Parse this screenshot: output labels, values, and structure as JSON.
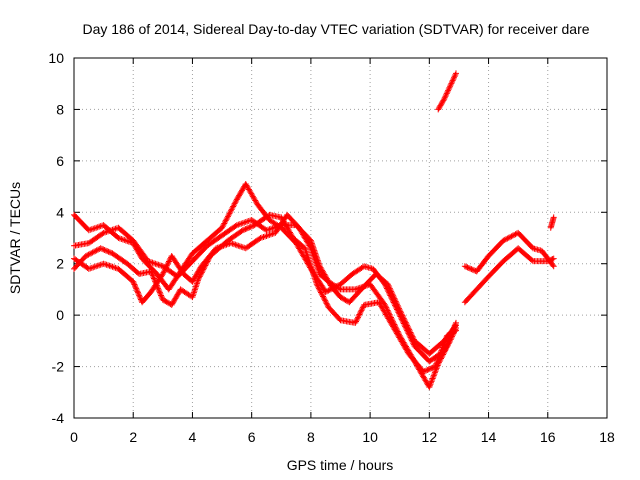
{
  "chart_data": {
    "type": "scatter",
    "title": "Day 186 of 2014, Sidereal Day-to-day VTEC variation (SDTVAR) for receiver dare",
    "xlabel": "GPS time / hours",
    "ylabel": "SDTVAR / TECUs",
    "xlim": [
      0,
      18
    ],
    "ylim": [
      -4,
      10
    ],
    "xticks": [
      "0",
      "2",
      "4",
      "6",
      "8",
      "10",
      "12",
      "14",
      "16",
      "18"
    ],
    "yticks": [
      "-4",
      "-2",
      "0",
      "2",
      "4",
      "6",
      "8",
      "10"
    ],
    "grid": true,
    "legend": "none",
    "marker": "+",
    "color": "#ff0000",
    "series": [
      {
        "name": "track-a",
        "points": [
          [
            0,
            3.9
          ],
          [
            0.5,
            3.3
          ],
          [
            1,
            3.5
          ],
          [
            1.5,
            3.0
          ],
          [
            2,
            2.8
          ],
          [
            2.3,
            2.2
          ],
          [
            2.8,
            1.6
          ],
          [
            3.2,
            1.0
          ],
          [
            3.6,
            1.7
          ],
          [
            4,
            2.4
          ],
          [
            4.5,
            2.9
          ],
          [
            5,
            3.4
          ],
          [
            5.5,
            4.5
          ],
          [
            5.8,
            5.1
          ],
          [
            6.2,
            4.3
          ],
          [
            6.6,
            3.7
          ],
          [
            7,
            3.4
          ],
          [
            7.5,
            2.8
          ],
          [
            8,
            1.8
          ],
          [
            8.5,
            0.9
          ],
          [
            9,
            1.2
          ],
          [
            9.4,
            1.6
          ],
          [
            9.8,
            1.9
          ],
          [
            10.1,
            1.8
          ],
          [
            10.5,
            1.2
          ],
          [
            11,
            0.0
          ],
          [
            11.5,
            -1.2
          ],
          [
            12,
            -1.8
          ],
          [
            12.5,
            -1.4
          ],
          [
            12.9,
            -0.3
          ]
        ]
      },
      {
        "name": "track-b",
        "points": [
          [
            0,
            2.7
          ],
          [
            0.5,
            2.8
          ],
          [
            1,
            3.2
          ],
          [
            1.5,
            3.4
          ],
          [
            2,
            2.9
          ],
          [
            2.5,
            2.1
          ],
          [
            3,
            1.9
          ],
          [
            3.5,
            1.5
          ],
          [
            4,
            2.1
          ],
          [
            4.5,
            2.7
          ],
          [
            5,
            3.1
          ],
          [
            5.5,
            3.5
          ],
          [
            6,
            3.7
          ],
          [
            6.5,
            3.3
          ],
          [
            7,
            3.5
          ],
          [
            7.5,
            3.5
          ],
          [
            8,
            2.9
          ],
          [
            8.3,
            1.9
          ],
          [
            8.7,
            1.1
          ],
          [
            9,
            0.7
          ],
          [
            9.3,
            0.5
          ],
          [
            9.7,
            1.0
          ],
          [
            10.2,
            1.6
          ],
          [
            10.6,
            1.2
          ],
          [
            11,
            0.2
          ],
          [
            11.5,
            -1.0
          ],
          [
            12,
            -1.5
          ],
          [
            12.5,
            -1.0
          ],
          [
            12.9,
            -0.4
          ]
        ]
      },
      {
        "name": "track-c",
        "points": [
          [
            0,
            2.2
          ],
          [
            0.5,
            1.8
          ],
          [
            1,
            2.0
          ],
          [
            1.5,
            1.8
          ],
          [
            2,
            1.3
          ],
          [
            2.3,
            0.5
          ],
          [
            2.6,
            0.9
          ],
          [
            3,
            1.6
          ],
          [
            3.3,
            2.3
          ],
          [
            3.7,
            1.6
          ],
          [
            4,
            1.3
          ],
          [
            4.3,
            1.9
          ],
          [
            4.8,
            2.6
          ],
          [
            5.3,
            2.8
          ],
          [
            5.8,
            2.6
          ],
          [
            6.3,
            3.0
          ],
          [
            6.8,
            3.2
          ],
          [
            7.2,
            3.9
          ],
          [
            7.6,
            3.4
          ],
          [
            8,
            2.6
          ],
          [
            8.3,
            1.6
          ],
          [
            8.6,
            1.3
          ],
          [
            9,
            1.0
          ],
          [
            9.5,
            1.0
          ],
          [
            10,
            1.2
          ],
          [
            10.5,
            0.4
          ],
          [
            11,
            -0.8
          ],
          [
            11.5,
            -1.8
          ],
          [
            12,
            -2.8
          ],
          [
            12.3,
            -1.9
          ],
          [
            12.7,
            -1.0
          ],
          [
            12.9,
            -0.5
          ]
        ]
      },
      {
        "name": "track-d",
        "points": [
          [
            0,
            1.8
          ],
          [
            0.4,
            2.3
          ],
          [
            0.9,
            2.6
          ],
          [
            1.3,
            2.4
          ],
          [
            1.8,
            2.0
          ],
          [
            2.2,
            1.6
          ],
          [
            2.6,
            1.7
          ],
          [
            3.0,
            0.6
          ],
          [
            3.3,
            0.4
          ],
          [
            3.6,
            1.0
          ],
          [
            4.0,
            0.7
          ],
          [
            4.2,
            1.4
          ],
          [
            4.6,
            2.3
          ],
          [
            5.2,
            2.9
          ],
          [
            5.7,
            3.3
          ],
          [
            6.1,
            3.5
          ],
          [
            6.6,
            3.9
          ],
          [
            7.0,
            3.8
          ],
          [
            7.4,
            3.0
          ],
          [
            7.8,
            2.6
          ],
          [
            8.2,
            1.2
          ],
          [
            8.6,
            0.3
          ],
          [
            9.0,
            -0.2
          ],
          [
            9.5,
            -0.3
          ],
          [
            9.8,
            0.4
          ],
          [
            10.3,
            0.5
          ],
          [
            10.8,
            -0.5
          ],
          [
            11.3,
            -1.5
          ],
          [
            11.8,
            -2.2
          ],
          [
            12.2,
            -2.0
          ],
          [
            12.6,
            -0.8
          ],
          [
            12.9,
            -0.6
          ]
        ]
      },
      {
        "name": "track-e",
        "points": [
          [
            12.3,
            8.0
          ],
          [
            12.5,
            8.4
          ],
          [
            12.7,
            8.9
          ],
          [
            12.9,
            9.4
          ]
        ]
      },
      {
        "name": "track-f",
        "points": [
          [
            13.2,
            0.5
          ],
          [
            13.6,
            1.0
          ],
          [
            14,
            1.5
          ],
          [
            14.5,
            2.1
          ],
          [
            15,
            2.6
          ],
          [
            15.5,
            2.1
          ],
          [
            16,
            2.1
          ],
          [
            16.2,
            2.2
          ]
        ]
      },
      {
        "name": "track-g",
        "points": [
          [
            13.2,
            1.9
          ],
          [
            13.6,
            1.7
          ],
          [
            14,
            2.3
          ],
          [
            14.5,
            2.9
          ],
          [
            15,
            3.2
          ],
          [
            15.5,
            2.6
          ],
          [
            15.8,
            2.5
          ],
          [
            16.2,
            1.9
          ]
        ]
      },
      {
        "name": "track-h",
        "points": [
          [
            16.1,
            3.4
          ],
          [
            16.15,
            3.6
          ],
          [
            16.2,
            3.8
          ]
        ]
      }
    ]
  }
}
